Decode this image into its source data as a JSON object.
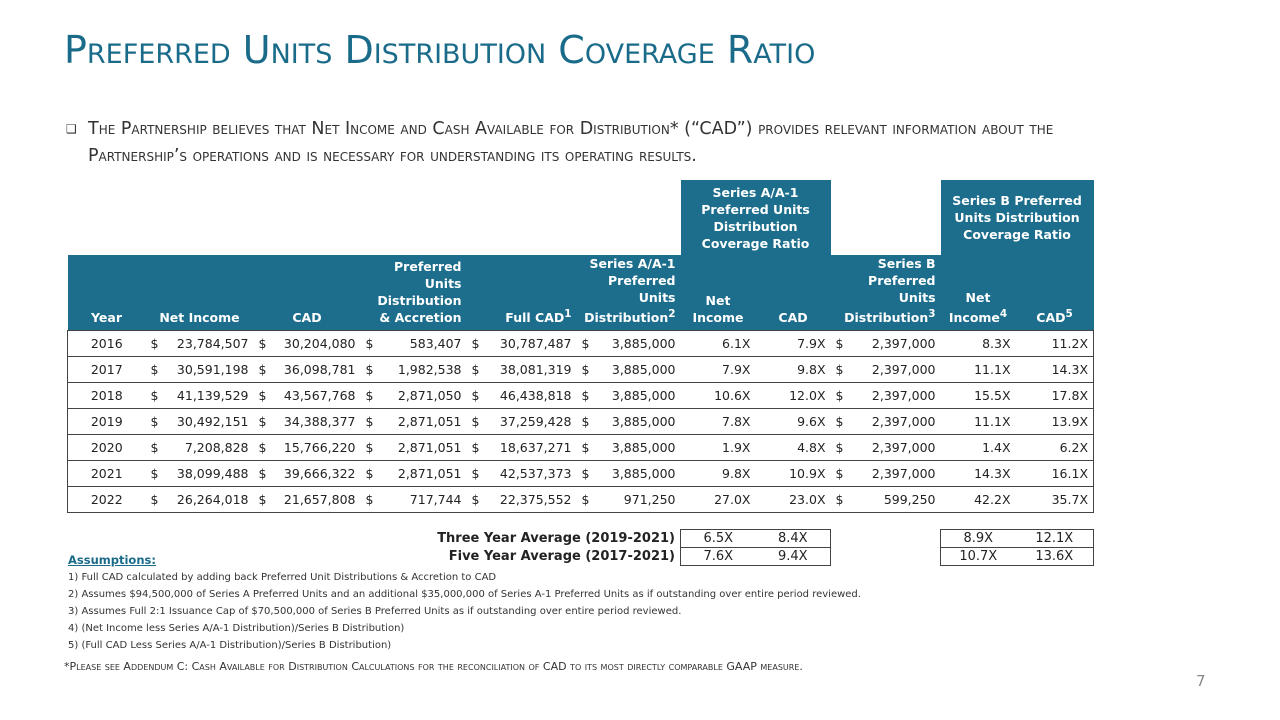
{
  "title": "Preferred Units Distribution Coverage Ratio",
  "intro": "The Partnership believes that Net Income and Cash Available for Distribution* (“CAD”) provides relevant information about the Partnership’s operations and is necessary for understanding its operating results.",
  "table": {
    "group_headers": [
      "Series A/A-1 Preferred Units Distribution Coverage Ratio",
      "Series B Preferred Units Distribution Coverage Ratio"
    ],
    "columns": [
      {
        "label": "Year"
      },
      {
        "label": "Net Income"
      },
      {
        "label": "CAD"
      },
      {
        "label": "Preferred Units Distribution & Accretion"
      },
      {
        "label": "Full CAD",
        "sup": "1"
      },
      {
        "label": "Series A/A-1 Preferred Units Distribution",
        "sup": "2"
      },
      {
        "label": "Net Income"
      },
      {
        "label": "CAD"
      },
      {
        "label": "Series B Preferred Units Distribution",
        "sup": "3"
      },
      {
        "label": "Net Income",
        "sup": "4"
      },
      {
        "label": "CAD",
        "sup": "5"
      }
    ],
    "currency_symbol": "$",
    "rows": [
      [
        "2016",
        "23,784,507",
        "30,204,080",
        "583,407",
        "30,787,487",
        "3,885,000",
        "6.1X",
        "7.9X",
        "2,397,000",
        "8.3X",
        "11.2X"
      ],
      [
        "2017",
        "30,591,198",
        "36,098,781",
        "1,982,538",
        "38,081,319",
        "3,885,000",
        "7.9X",
        "9.8X",
        "2,397,000",
        "11.1X",
        "14.3X"
      ],
      [
        "2018",
        "41,139,529",
        "43,567,768",
        "2,871,050",
        "46,438,818",
        "3,885,000",
        "10.6X",
        "12.0X",
        "2,397,000",
        "15.5X",
        "17.8X"
      ],
      [
        "2019",
        "30,492,151",
        "34,388,377",
        "2,871,051",
        "37,259,428",
        "3,885,000",
        "7.8X",
        "9.6X",
        "2,397,000",
        "11.1X",
        "13.9X"
      ],
      [
        "2020",
        "7,208,828",
        "15,766,220",
        "2,871,051",
        "18,637,271",
        "3,885,000",
        "1.9X",
        "4.8X",
        "2,397,000",
        "1.4X",
        "6.2X"
      ],
      [
        "2021",
        "38,099,488",
        "39,666,322",
        "2,871,051",
        "42,537,373",
        "3,885,000",
        "9.8X",
        "10.9X",
        "2,397,000",
        "14.3X",
        "16.1X"
      ],
      [
        "2022",
        "26,264,018",
        "21,657,808",
        "717,744",
        "22,375,552",
        "971,250",
        "27.0X",
        "23.0X",
        "599,250",
        "42.2X",
        "35.7X"
      ]
    ],
    "averages": [
      {
        "label": "Three Year Average (2019-2021)",
        "values": [
          "6.5X",
          "8.4X",
          "8.9X",
          "12.1X"
        ]
      },
      {
        "label": "Five Year Average (2017-2021)",
        "values": [
          "7.6X",
          "9.4X",
          "10.7X",
          "13.6X"
        ]
      }
    ]
  },
  "assumptions": {
    "heading": "Assumptions:",
    "items": [
      "1) Full CAD calculated by adding back Preferred Unit Distributions & Accretion to CAD",
      "2) Assumes  $94,500,000 of Series A Preferred Units and an additional $35,000,000 of Series A-1 Preferred Units as if outstanding over entire period reviewed.",
      "3) Assumes Full 2:1 Issuance Cap of $70,500,000 of Series B Preferred Units as if outstanding over entire period reviewed.",
      "4) (Net Income less Series A/A-1 Distribution)/Series B Distribution)",
      "5) (Full CAD Less Series A/A-1 Distribution)/Series B Distribution)"
    ]
  },
  "footnote": "*Please see Addendum C: Cash Available for Distribution Calculations for the reconciliation of CAD to its most directly comparable GAAP measure.",
  "page_number": "7"
}
